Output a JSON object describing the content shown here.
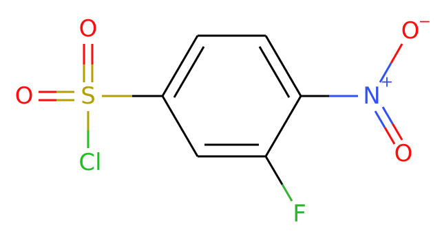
{
  "atoms": [
    {
      "label": "S"
    },
    {
      "label": "O"
    },
    {
      "label": "O"
    },
    {
      "label": "Cl"
    },
    {
      "label": "F"
    },
    {
      "label": "N"
    },
    {
      "label": "O"
    },
    {
      "label": "O"
    }
  ],
  "charges": [
    "+",
    "−"
  ]
}
